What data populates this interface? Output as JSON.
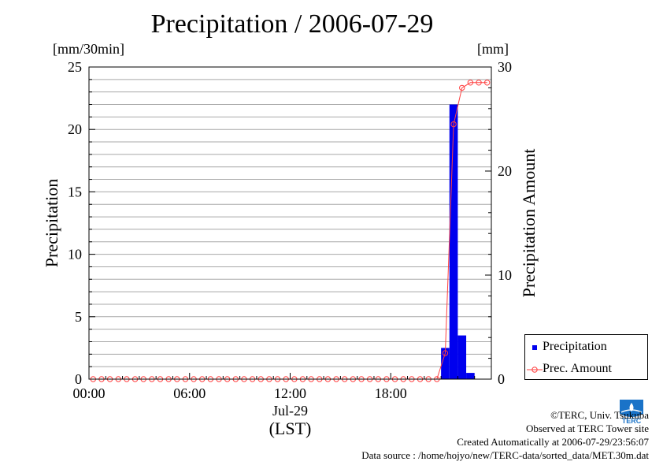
{
  "chart_data": {
    "type": "bar",
    "title": "Precipitation / 2006-07-29",
    "ylabel": "Precipitation",
    "y2label": "Precipitation Amount",
    "yunit": "[mm/30min]",
    "y2unit": "[mm]",
    "ylim": [
      0,
      25
    ],
    "y2lim": [
      0,
      30
    ],
    "yticks": [
      "0",
      "5",
      "10",
      "15",
      "20",
      "25"
    ],
    "y2ticks": [
      "0",
      "10",
      "20",
      "30"
    ],
    "xticks": [
      "00:00",
      "06:00",
      "12:00",
      "18:00"
    ],
    "xdate": "Jul-29",
    "xunit": "(LST)",
    "x_interval_hours": 0.5,
    "grid": true,
    "legend_position": "right-bottom",
    "series": [
      {
        "name": "Precipitation",
        "type": "bar",
        "axis": "left",
        "color": "#0000ee",
        "values": [
          0,
          0,
          0,
          0,
          0,
          0,
          0,
          0,
          0,
          0,
          0,
          0,
          0,
          0,
          0,
          0,
          0,
          0,
          0,
          0,
          0,
          0,
          0,
          0,
          0,
          0,
          0,
          0,
          0,
          0,
          0,
          0,
          0,
          0,
          0,
          0,
          0,
          0,
          0,
          0,
          0,
          0,
          2.5,
          22,
          3.5,
          0.5,
          0,
          0
        ]
      },
      {
        "name": "Prec. Amount",
        "type": "line",
        "axis": "right",
        "color": "#ff4040",
        "values": [
          0,
          0,
          0,
          0,
          0,
          0,
          0,
          0,
          0,
          0,
          0,
          0,
          0,
          0,
          0,
          0,
          0,
          0,
          0,
          0,
          0,
          0,
          0,
          0,
          0,
          0,
          0,
          0,
          0,
          0,
          0,
          0,
          0,
          0,
          0,
          0,
          0,
          0,
          0,
          0,
          0,
          0,
          2.5,
          24.5,
          28,
          28.5,
          28.5,
          28.5
        ]
      }
    ]
  },
  "credits": {
    "copyright": "©TERC, Univ. Tsukuba",
    "site": "Observed at TERC Tower site",
    "created": "Created Automatically at 2006-07-29/23:56:07",
    "source": "Data source : /home/hojyo/new/TERC-data/sorted_data/MET.30m.dat"
  },
  "logo": {
    "text": "TERC",
    "color": "#1a73c8"
  }
}
